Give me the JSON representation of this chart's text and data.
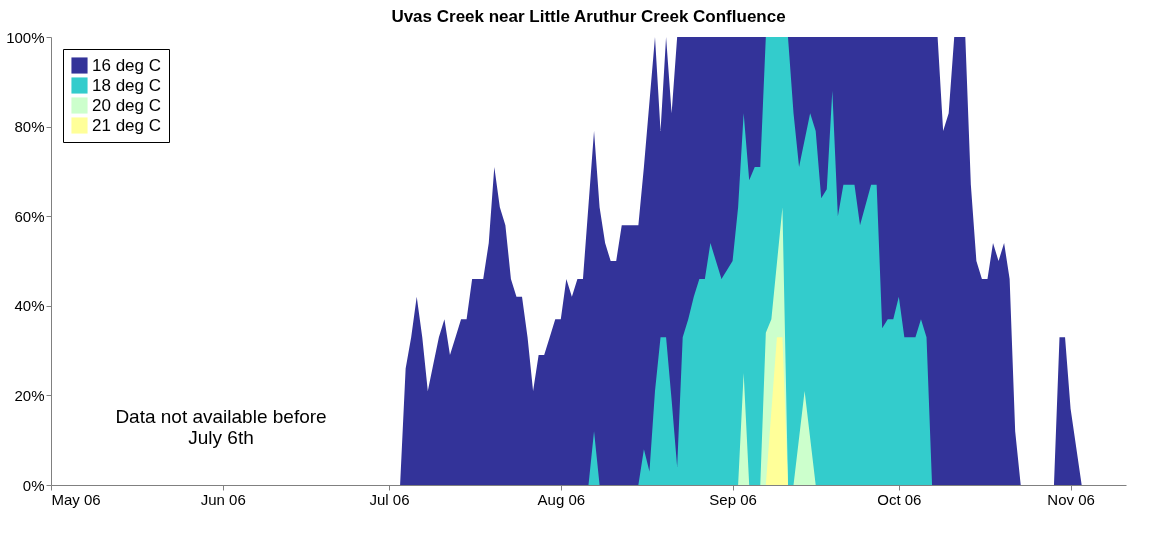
{
  "chart_data": {
    "type": "area",
    "title": "Uvas Creek near Little Aruthur Creek Confluence",
    "xlim": [
      "2006-05-01",
      "2006-11-11"
    ],
    "xticks": [
      {
        "value": "2006-05-01",
        "label": "May 06"
      },
      {
        "value": "2006-06-01",
        "label": "Jun 06"
      },
      {
        "value": "2006-07-01",
        "label": "Jul 06"
      },
      {
        "value": "2006-08-01",
        "label": "Aug 06"
      },
      {
        "value": "2006-09-01",
        "label": "Sep 06"
      },
      {
        "value": "2006-10-01",
        "label": "Oct 06"
      },
      {
        "value": "2006-11-01",
        "label": "Nov 06"
      }
    ],
    "ylim": [
      0,
      100
    ],
    "yticks": [
      {
        "value": 0,
        "label": "0%"
      },
      {
        "value": 20,
        "label": "20%"
      },
      {
        "value": 40,
        "label": "40%"
      },
      {
        "value": 60,
        "label": "60%"
      },
      {
        "value": 80,
        "label": "80%"
      },
      {
        "value": 100,
        "label": "100%"
      }
    ],
    "grid": false,
    "legend": "top left",
    "annotations": [
      "Data not available before\nJuly 6th"
    ],
    "series": [
      {
        "name": "16 deg C",
        "color": "#333399",
        "x": [
          "2006-07-03",
          "2006-07-04",
          "2006-07-05",
          "2006-07-06",
          "2006-07-07",
          "2006-07-08",
          "2006-07-09",
          "2006-07-10",
          "2006-07-11",
          "2006-07-12",
          "2006-07-13",
          "2006-07-14",
          "2006-07-15",
          "2006-07-16",
          "2006-07-17",
          "2006-07-18",
          "2006-07-19",
          "2006-07-20",
          "2006-07-21",
          "2006-07-22",
          "2006-07-23",
          "2006-07-24",
          "2006-07-25",
          "2006-07-26",
          "2006-07-27",
          "2006-07-28",
          "2006-07-29",
          "2006-07-30",
          "2006-07-31",
          "2006-08-01",
          "2006-08-02",
          "2006-08-03",
          "2006-08-04",
          "2006-08-05",
          "2006-08-07",
          "2006-08-08",
          "2006-08-09",
          "2006-08-10",
          "2006-08-11",
          "2006-08-12",
          "2006-08-15",
          "2006-08-16",
          "2006-08-18",
          "2006-08-19",
          "2006-08-20",
          "2006-08-21",
          "2006-08-22",
          "2006-10-08",
          "2006-10-09",
          "2006-10-10",
          "2006-10-11",
          "2006-10-13",
          "2006-10-14",
          "2006-10-15",
          "2006-10-16",
          "2006-10-17",
          "2006-10-18",
          "2006-10-19",
          "2006-10-20",
          "2006-10-21",
          "2006-10-22",
          "2006-10-23",
          "2006-10-29",
          "2006-10-30",
          "2006-10-31",
          "2006-11-01",
          "2006-11-03"
        ],
        "values": [
          0,
          26,
          33,
          42,
          33,
          21,
          27,
          33,
          37,
          29,
          33,
          37,
          37,
          46,
          46,
          46,
          54,
          71,
          62,
          58,
          46,
          42,
          42,
          33,
          21,
          29,
          29,
          33,
          37,
          37,
          46,
          42,
          46,
          46,
          79,
          62,
          54,
          50,
          50,
          58,
          58,
          71,
          100,
          79,
          100,
          83,
          100,
          100,
          79,
          83,
          100,
          100,
          67,
          50,
          46,
          46,
          54,
          50,
          54,
          46,
          12,
          0,
          0,
          33,
          33,
          17,
          0
        ]
      },
      {
        "name": "18 deg C",
        "color": "#33cccc",
        "x": [
          "2006-08-06",
          "2006-08-07",
          "2006-08-08",
          "2006-08-15",
          "2006-08-16",
          "2006-08-17",
          "2006-08-18",
          "2006-08-19",
          "2006-08-20",
          "2006-08-21",
          "2006-08-22",
          "2006-08-23",
          "2006-08-24",
          "2006-08-25",
          "2006-08-26",
          "2006-08-27",
          "2006-08-28",
          "2006-08-29",
          "2006-08-30",
          "2006-09-01",
          "2006-09-02",
          "2006-09-03",
          "2006-09-04",
          "2006-09-05",
          "2006-09-06",
          "2006-09-07",
          "2006-09-11",
          "2006-09-12",
          "2006-09-13",
          "2006-09-15",
          "2006-09-16",
          "2006-09-17",
          "2006-09-18",
          "2006-09-19",
          "2006-09-20",
          "2006-09-21",
          "2006-09-23",
          "2006-09-24",
          "2006-09-26",
          "2006-09-27",
          "2006-09-28",
          "2006-09-29",
          "2006-09-30",
          "2006-10-01",
          "2006-10-02",
          "2006-10-04",
          "2006-10-05",
          "2006-10-06",
          "2006-10-07"
        ],
        "values": [
          0,
          12,
          0,
          0,
          8,
          3,
          21,
          33,
          33,
          19,
          4,
          33,
          37,
          42,
          46,
          46,
          54,
          50,
          46,
          50,
          62,
          83,
          68,
          71,
          71,
          100,
          100,
          83,
          71,
          83,
          79,
          64,
          66,
          88,
          60,
          67,
          67,
          58,
          67,
          67,
          35,
          37,
          37,
          42,
          33,
          33,
          37,
          33,
          0
        ]
      },
      {
        "name": "20 deg C",
        "color": "#ccffcc",
        "x": [
          "2006-09-02",
          "2006-09-03",
          "2006-09-04",
          "2006-09-06",
          "2006-09-07",
          "2006-09-08",
          "2006-09-10",
          "2006-09-11",
          "2006-09-12",
          "2006-09-14",
          "2006-09-16"
        ],
        "values": [
          0,
          25,
          0,
          0,
          34,
          37,
          62,
          0,
          0,
          21,
          0
        ]
      },
      {
        "name": "21 deg C",
        "color": "#ffff99",
        "x": [
          "2006-09-07",
          "2006-09-09",
          "2006-09-10",
          "2006-09-11"
        ],
        "values": [
          0,
          33,
          33,
          0
        ]
      }
    ]
  }
}
